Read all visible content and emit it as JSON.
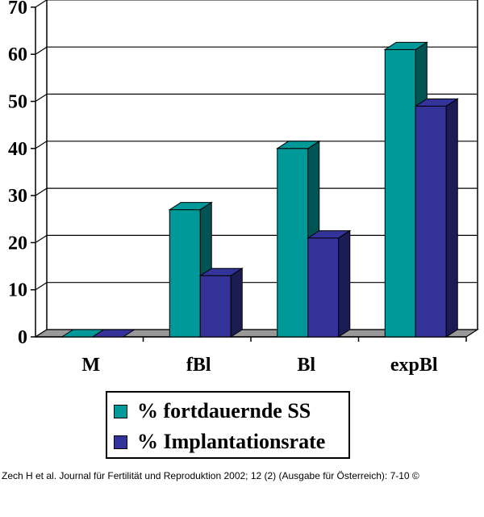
{
  "chart_data": {
    "type": "bar",
    "style": "3d-clustered-column",
    "categories": [
      "M",
      "fBl",
      "Bl",
      "expBl"
    ],
    "series": [
      {
        "name": "% fortdauernde SS",
        "values": [
          0,
          27,
          40,
          61
        ],
        "color": "#009999"
      },
      {
        "name": "% Implantationsrate",
        "values": [
          0,
          13,
          21,
          49
        ],
        "color": "#333399"
      }
    ],
    "yticks": [
      0,
      10,
      20,
      30,
      40,
      50,
      60,
      70
    ],
    "ylim": [
      0,
      70
    ],
    "grid": true,
    "legend_position": "bottom"
  },
  "legend": {
    "items": [
      {
        "label": "% fortdauernde SS",
        "color": "#009999"
      },
      {
        "label": "% Implantationsrate",
        "color": "#333399"
      }
    ]
  },
  "citation": "Zech H et al. Journal für Fertilität und Reproduktion 2002; 12 (2) (Ausgabe für Österreich): 7-10 ©"
}
